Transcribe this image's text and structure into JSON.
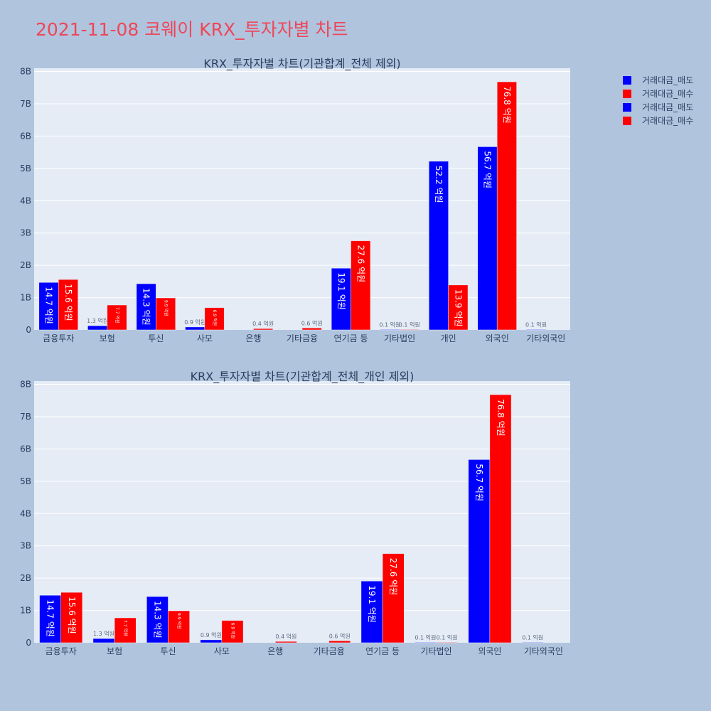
{
  "page_title": "2021-11-08 코웨이 KRX_투자자별 차트",
  "colors": {
    "sell": "#0000ff",
    "buy": "#ff0000",
    "plot_bg": "#e5ecf6",
    "page_bg": "#b0c4de",
    "title": "#ef4658"
  },
  "legend": [
    {
      "label": "거래대금_매도",
      "color": "#0000ff"
    },
    {
      "label": "거래대금_매수",
      "color": "#ff0000"
    },
    {
      "label": "거래대금_매도",
      "color": "#0000ff"
    },
    {
      "label": "거래대금_매수",
      "color": "#ff0000"
    }
  ],
  "chart_data": [
    {
      "type": "bar",
      "title": "KRX_투자자별 차트(기관합계_전체 제외)",
      "categories": [
        "금융투자",
        "보험",
        "투신",
        "사모",
        "은행",
        "기타금융",
        "연기금 등",
        "기타법인",
        "개인",
        "외국인",
        "기타외국인"
      ],
      "ylim": [
        0,
        8100000000
      ],
      "yticks": [
        "0",
        "1B",
        "2B",
        "3B",
        "4B",
        "5B",
        "6B",
        "7B",
        "8B"
      ],
      "series": [
        {
          "name": "거래대금_매도",
          "color": "#0000ff",
          "values": [
            1470000000,
            130000000,
            1430000000,
            90000000,
            0,
            0,
            1910000000,
            10000000,
            5220000000,
            5670000000,
            10000000
          ],
          "labels": [
            "14.7 억원",
            "1.3 억원",
            "14.3 억원",
            "0.9 억원",
            "",
            "",
            "19.1 억원",
            "0.1 억원",
            "52.2 억원",
            "56.7 억원",
            "0.1 억원"
          ]
        },
        {
          "name": "거래대금_매수",
          "color": "#ff0000",
          "values": [
            1560000000,
            770000000,
            990000000,
            690000000,
            40000000,
            60000000,
            2760000000,
            10000000,
            1390000000,
            7680000000,
            0
          ],
          "labels": [
            "15.6 억원",
            "7.7 억원",
            "9.9 억원",
            "6.9 억원",
            "0.4 억원",
            "0.6 억원",
            "27.6 억원",
            "0.1 억원",
            "13.9 억원",
            "76.8 억원",
            ""
          ]
        }
      ]
    },
    {
      "type": "bar",
      "title": "KRX_투자자별 차트(기관합계_전체_개인 제외)",
      "categories": [
        "금융투자",
        "보험",
        "투신",
        "사모",
        "은행",
        "기타금융",
        "연기금 등",
        "기타법인",
        "외국인",
        "기타외국인"
      ],
      "ylim": [
        0,
        8100000000
      ],
      "yticks": [
        "0",
        "1B",
        "2B",
        "3B",
        "4B",
        "5B",
        "6B",
        "7B",
        "8B"
      ],
      "series": [
        {
          "name": "거래대금_매도",
          "color": "#0000ff",
          "values": [
            1470000000,
            130000000,
            1430000000,
            90000000,
            0,
            0,
            1910000000,
            10000000,
            5670000000,
            10000000
          ],
          "labels": [
            "14.7 억원",
            "1.3 억원",
            "14.3 억원",
            "0.9 억원",
            "",
            "",
            "19.1 억원",
            "0.1 억원",
            "56.7 억원",
            "0.1 억원"
          ]
        },
        {
          "name": "거래대금_매수",
          "color": "#ff0000",
          "values": [
            1560000000,
            770000000,
            990000000,
            690000000,
            40000000,
            60000000,
            2760000000,
            10000000,
            7680000000,
            0
          ],
          "labels": [
            "15.6 억원",
            "7.7 억원",
            "9.9 억원",
            "6.9 억원",
            "0.4 억원",
            "0.6 억원",
            "27.6 억원",
            "0.1 억원",
            "76.8 억원",
            ""
          ]
        }
      ]
    }
  ]
}
